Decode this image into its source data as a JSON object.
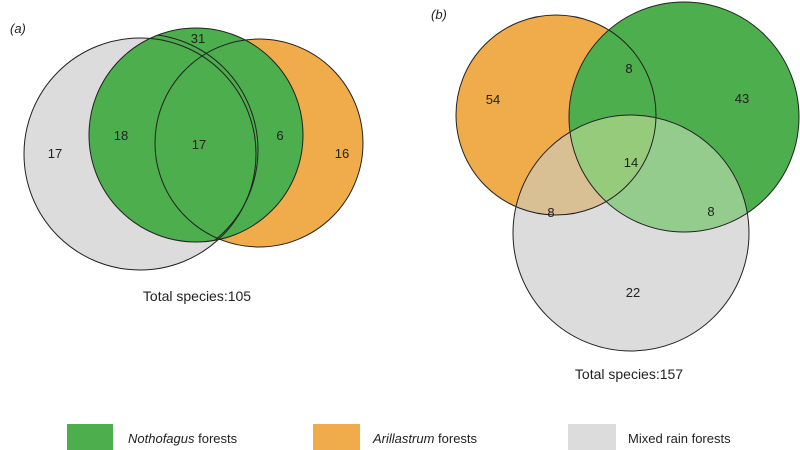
{
  "colors": {
    "nothofagus": "#4cae4c",
    "arillastrum": "#f0ab4a",
    "mixed": "#dcdcdc",
    "outline": "#222222",
    "panel_b_orange_gray": "#d8bf94",
    "panel_b_green_gray": "#94cc8e",
    "panel_b_center": "#97cb7c"
  },
  "panel_a": {
    "label": "(a)",
    "counts": {
      "mixed_only": "17",
      "mixed_noth": "18",
      "all_three": "17",
      "noth_arill": "6",
      "arill_only": "16",
      "top": "31"
    },
    "total": "Total species:105"
  },
  "panel_b": {
    "label": "(b)",
    "counts": {
      "arill_only": "54",
      "arill_noth": "8",
      "noth_only": "43",
      "all_three": "14",
      "arill_mixed": "8",
      "noth_mixed": "8",
      "mixed_only": "22"
    },
    "total": "Total species:157"
  },
  "legend": [
    {
      "italic": "Nothofagus",
      "rest": " forests",
      "icon": "green-swatch"
    },
    {
      "italic": "Arillastrum",
      "rest": " forests",
      "icon": "orange-swatch"
    },
    {
      "italic": "",
      "rest": "Mixed rain forests",
      "icon": "gray-swatch"
    }
  ]
}
